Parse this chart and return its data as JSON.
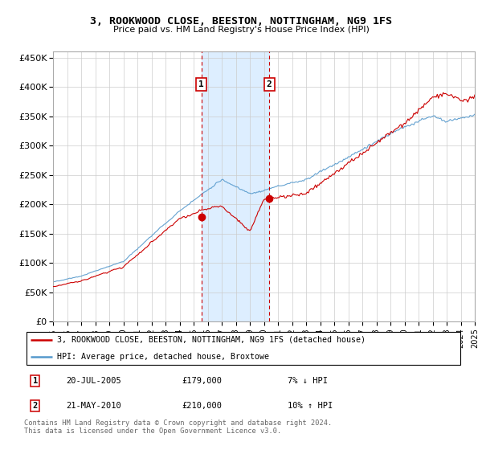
{
  "title": "3, ROOKWOOD CLOSE, BEESTON, NOTTINGHAM, NG9 1FS",
  "subtitle": "Price paid vs. HM Land Registry's House Price Index (HPI)",
  "legend_line1": "3, ROOKWOOD CLOSE, BEESTON, NOTTINGHAM, NG9 1FS (detached house)",
  "legend_line2": "HPI: Average price, detached house, Broxtowe",
  "annotation1_date": "20-JUL-2005",
  "annotation1_price": "£179,000",
  "annotation1_hpi": "7% ↓ HPI",
  "annotation1_year": 2005.55,
  "annotation1_value": 179000,
  "annotation2_date": "21-MAY-2010",
  "annotation2_price": "£210,000",
  "annotation2_hpi": "10% ↑ HPI",
  "annotation2_year": 2010.38,
  "annotation2_value": 210000,
  "footer": "Contains HM Land Registry data © Crown copyright and database right 2024.\nThis data is licensed under the Open Government Licence v3.0.",
  "hpi_color": "#5599cc",
  "price_color": "#cc0000",
  "annotation_box_color": "#cc0000",
  "shaded_region_color": "#ddeeff",
  "ylim": [
    0,
    460000
  ],
  "ytick_vals": [
    0,
    50000,
    100000,
    150000,
    200000,
    250000,
    300000,
    350000,
    400000,
    450000
  ],
  "ytick_labels": [
    "£0",
    "£50K",
    "£100K",
    "£150K",
    "£200K",
    "£250K",
    "£300K",
    "£350K",
    "£400K",
    "£450K"
  ],
  "xstart": 1995,
  "xend": 2025
}
